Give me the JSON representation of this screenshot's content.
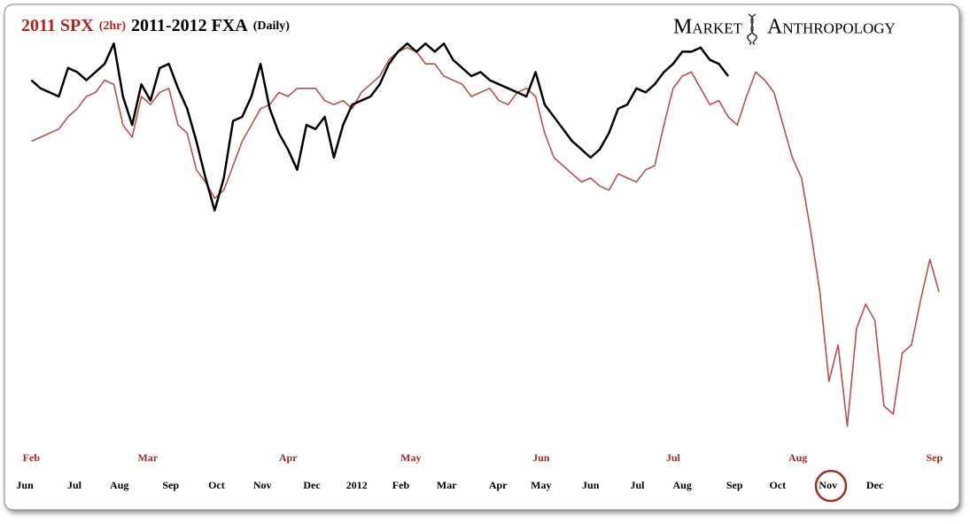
{
  "chart_data": {
    "type": "line",
    "logo": [
      "Market",
      "Anthropology"
    ],
    "xlim": [
      -1,
      99
    ],
    "ylim": [
      0,
      100
    ],
    "x2ticks": [
      {
        "value": 0,
        "label": "Feb"
      },
      {
        "value": 12.7,
        "label": "Mar"
      },
      {
        "value": 28,
        "label": "Apr"
      },
      {
        "value": 41.4,
        "label": "May"
      },
      {
        "value": 55.6,
        "label": "Jun"
      },
      {
        "value": 70,
        "label": "Jul"
      },
      {
        "value": 83.6,
        "label": "Aug"
      },
      {
        "value": 98.5,
        "label": "Sep"
      }
    ],
    "xticks": [
      {
        "value": -0.7,
        "label": "Jun"
      },
      {
        "value": 4.7,
        "label": "Jul"
      },
      {
        "value": 9.6,
        "label": "Aug"
      },
      {
        "value": 15.2,
        "label": "Sep"
      },
      {
        "value": 20.2,
        "label": "Oct"
      },
      {
        "value": 25.2,
        "label": "Nov"
      },
      {
        "value": 30.6,
        "label": "Dec"
      },
      {
        "value": 35.5,
        "label": "2012"
      },
      {
        "value": 40.3,
        "label": "Feb"
      },
      {
        "value": 45.3,
        "label": "Mar"
      },
      {
        "value": 50.9,
        "label": "Apr"
      },
      {
        "value": 55.6,
        "label": "May"
      },
      {
        "value": 61,
        "label": "Jun"
      },
      {
        "value": 66.1,
        "label": "Jul"
      },
      {
        "value": 71,
        "label": "Aug"
      },
      {
        "value": 76.7,
        "label": "Sep"
      },
      {
        "value": 81.4,
        "label": "Oct"
      },
      {
        "value": 86.9,
        "label": "Nov"
      },
      {
        "value": 92,
        "label": "Dec"
      }
    ],
    "series": [
      {
        "name": "2011 SPX",
        "note": "(2hr)",
        "color": "#b5524f",
        "axis": "x2",
        "values": [
          74,
          75,
          76,
          77,
          80,
          82,
          85,
          86,
          89,
          88,
          78,
          75,
          85,
          83,
          86,
          87,
          78,
          76,
          67,
          64,
          60,
          62,
          68,
          74,
          78,
          82,
          83,
          86,
          85,
          87,
          87,
          87,
          84,
          83,
          84,
          82,
          86,
          88,
          90,
          94,
          96,
          97,
          96,
          93,
          93,
          90,
          89,
          88,
          85,
          86,
          87,
          84,
          83,
          86,
          87,
          85,
          76,
          70,
          68,
          66,
          64,
          65,
          63,
          62,
          66,
          65,
          64,
          67,
          68,
          78,
          87,
          90,
          91,
          87,
          83,
          84,
          80,
          78,
          85,
          91,
          89,
          86,
          78,
          70,
          65,
          52,
          37,
          15,
          24,
          4,
          28,
          34,
          30,
          9,
          7,
          22,
          24,
          35,
          45,
          37
        ]
      },
      {
        "name": "2011-2012 FXA",
        "note": "(Daily)",
        "color": "#000000",
        "values": [
          89,
          87,
          86,
          85,
          92,
          91,
          89,
          91,
          93,
          98,
          85,
          78,
          88,
          84,
          92,
          93,
          87,
          82,
          74,
          65,
          57,
          65,
          79,
          80,
          85,
          93,
          82,
          76,
          72,
          67,
          78,
          77,
          80,
          70,
          78,
          83,
          84,
          85,
          88,
          93,
          96,
          98,
          96,
          98,
          96,
          98,
          94,
          92,
          90,
          91,
          89,
          88,
          87,
          86,
          85,
          91,
          83,
          80,
          77,
          74,
          72,
          70,
          72,
          76,
          82,
          83,
          87,
          86,
          88,
          91,
          93,
          96,
          96,
          97,
          94,
          93,
          90
        ]
      }
    ]
  }
}
